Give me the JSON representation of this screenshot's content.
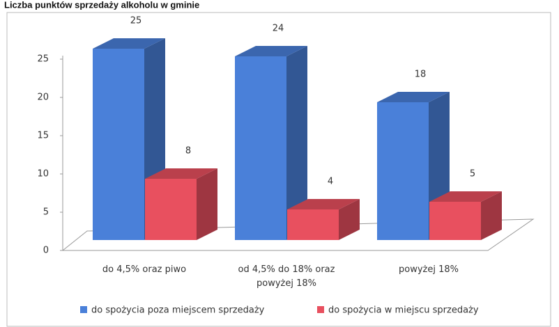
{
  "chart_data": {
    "type": "bar3d",
    "title": "Liczba punktów sprzedaży alkoholu w gminie",
    "categories": [
      "do 4,5% oraz piwo",
      "od 4,5% do 18% oraz powyżej 18%",
      "powyżej 18%"
    ],
    "series": [
      {
        "name": "do spożycia poza miejscem sprzedaży",
        "color": "#4a80d9",
        "values": [
          25,
          24,
          18
        ]
      },
      {
        "name": "do spożycia w miejscu sprzedaży",
        "color": "#e8505f",
        "values": [
          8,
          4,
          5
        ]
      }
    ],
    "ylim": [
      0,
      25
    ],
    "yticks": [
      0,
      5,
      10,
      15,
      20,
      25
    ],
    "legend": "bottom"
  }
}
